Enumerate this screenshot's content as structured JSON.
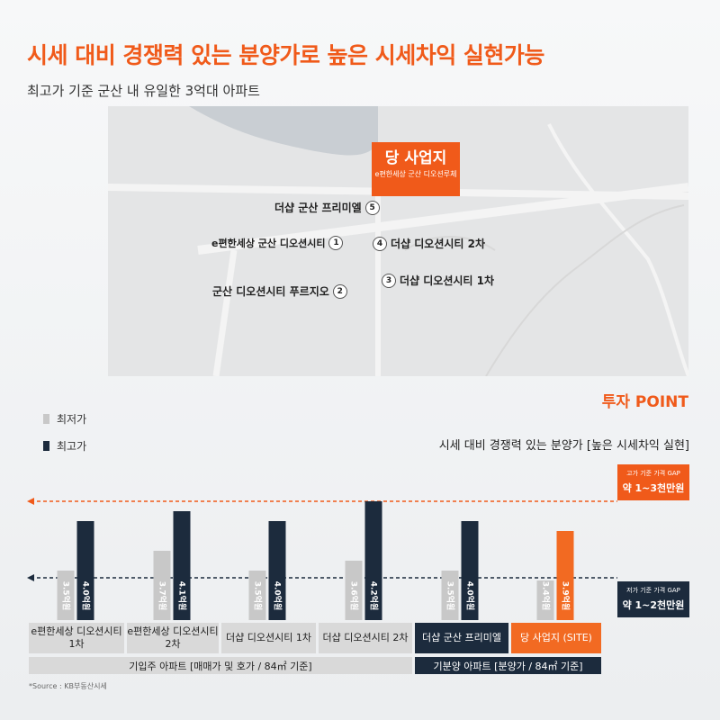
{
  "header": {
    "title": "시세 대비 경쟁력 있는 분양가로 높은 시세차익 실현가능",
    "subtitle": "최고가 기준 군산 내 유일한 3억대 아파트"
  },
  "map": {
    "site_label": "당 사업지",
    "site_name": "e편한세상 군산 디오션루체",
    "pins": [
      {
        "num": "5",
        "label": "더샵 군산 프리미엘"
      },
      {
        "num": "1",
        "label": "e편한세상 군산 디오션시티"
      },
      {
        "num": "2",
        "label": "군산 디오션시티 푸르지오"
      },
      {
        "num": "4",
        "label": "더샵 디오션시티 2차"
      },
      {
        "num": "3",
        "label": "더샵 디오션시티 1차"
      }
    ]
  },
  "section_title": "투자 POINT",
  "chart_data": {
    "type": "bar",
    "subtitle": "시세 대비 경쟁력 있는 분양가 [높은 시세차익 실현]",
    "categories": [
      "e편한세상 디오션시티 1차",
      "e편한세상 디오션시티 2차",
      "더샵 디오션시티 1차",
      "더샵 디오션시티 2차",
      "더샵 군산 프리미엘",
      "당 사업지 (SITE)"
    ],
    "series": [
      {
        "name": "최저가",
        "values": [
          3.5,
          3.7,
          3.5,
          3.6,
          3.5,
          3.4
        ],
        "labels": [
          "3.5억원",
          "3.7억원",
          "3.5억원",
          "3.6억원",
          "3.5억원",
          "3.4억원"
        ]
      },
      {
        "name": "최고가",
        "values": [
          4.0,
          4.1,
          4.0,
          4.2,
          4.0,
          3.9
        ],
        "labels": [
          "4.0억원",
          "4.1억원",
          "4.0억원",
          "4.2억원",
          "4.0억원",
          "3.9억원"
        ]
      }
    ],
    "groups": [
      {
        "label": "기입주 아파트 [매매가 및 호가 / 84㎡ 기준]"
      },
      {
        "label": "기분양 아파트 [분양가 / 84㎡ 기준]"
      }
    ],
    "annotations": [
      {
        "small": "고가 기준 가격 GAP",
        "big": "약 1~3천만원"
      },
      {
        "small": "저가 기준 가격 GAP",
        "big": "약 1~2천만원"
      }
    ],
    "colors": {
      "low": "#c8c8c8",
      "high": "#1c2b3d",
      "site": "#f26a22",
      "accent": "#f05a1a"
    },
    "grid": false,
    "legend": "top-left"
  },
  "source": "*Source : KB부동산시세"
}
